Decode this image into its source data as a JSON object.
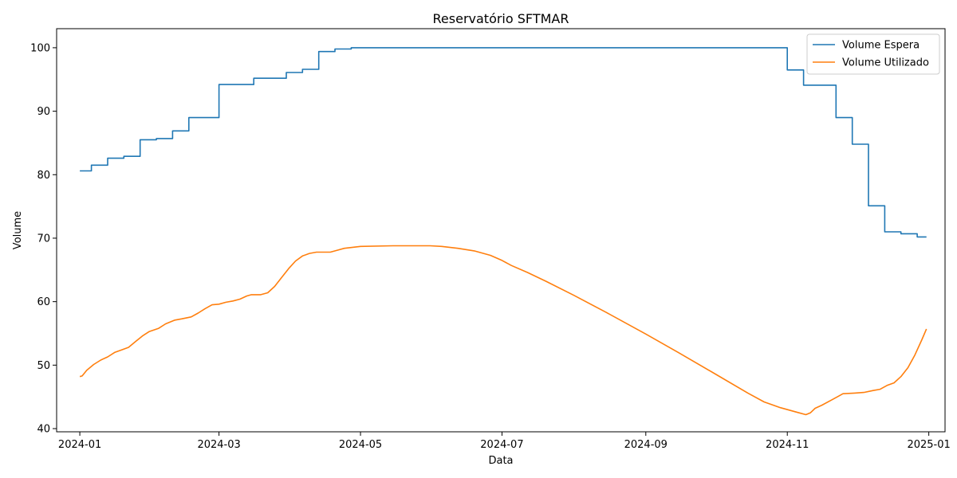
{
  "chart_data": {
    "type": "line",
    "title": "Reservatório SFTMAR",
    "xlabel": "Data",
    "ylabel": "Volume",
    "x_axis": "date",
    "xlim": [
      "2023-12-22",
      "2025-01-08"
    ],
    "ylim": [
      39.5,
      103
    ],
    "x_ticks": [
      "2024-01",
      "2024-03",
      "2024-05",
      "2024-07",
      "2024-09",
      "2024-11",
      "2025-01"
    ],
    "x_tick_dates": [
      "2024-01-01",
      "2024-03-01",
      "2024-05-01",
      "2024-07-01",
      "2024-09-01",
      "2024-11-01",
      "2025-01-01"
    ],
    "y_ticks": [
      40,
      50,
      60,
      70,
      80,
      90,
      100
    ],
    "grid": false,
    "legend_position": "top-right",
    "series": [
      {
        "name": "Volume Espera",
        "color": "#1f77b4",
        "step": true,
        "points": [
          [
            "2024-01-01",
            80.6
          ],
          [
            "2024-01-06",
            81.5
          ],
          [
            "2024-01-13",
            82.6
          ],
          [
            "2024-01-20",
            82.9
          ],
          [
            "2024-01-27",
            85.5
          ],
          [
            "2024-02-03",
            85.7
          ],
          [
            "2024-02-10",
            86.9
          ],
          [
            "2024-02-17",
            89.0
          ],
          [
            "2024-03-01",
            94.2
          ],
          [
            "2024-03-16",
            95.2
          ],
          [
            "2024-03-30",
            96.1
          ],
          [
            "2024-04-06",
            96.6
          ],
          [
            "2024-04-13",
            99.4
          ],
          [
            "2024-04-20",
            99.8
          ],
          [
            "2024-04-27",
            100.0
          ],
          [
            "2024-10-31",
            100.0
          ],
          [
            "2024-11-01",
            96.5
          ],
          [
            "2024-11-08",
            94.1
          ],
          [
            "2024-11-22",
            89.0
          ],
          [
            "2024-11-29",
            84.8
          ],
          [
            "2024-12-06",
            75.1
          ],
          [
            "2024-12-13",
            71.0
          ],
          [
            "2024-12-20",
            70.7
          ],
          [
            "2024-12-27",
            70.2
          ],
          [
            "2024-12-31",
            70.2
          ]
        ]
      },
      {
        "name": "Volume Utilizado",
        "color": "#ff7f0e",
        "step": false,
        "points": [
          [
            "2024-01-01",
            48.2
          ],
          [
            "2024-01-02",
            48.3
          ],
          [
            "2024-01-04",
            49.2
          ],
          [
            "2024-01-07",
            50.1
          ],
          [
            "2024-01-10",
            50.8
          ],
          [
            "2024-01-13",
            51.3
          ],
          [
            "2024-01-16",
            52.0
          ],
          [
            "2024-01-19",
            52.4
          ],
          [
            "2024-01-22",
            52.8
          ],
          [
            "2024-01-25",
            53.7
          ],
          [
            "2024-01-28",
            54.6
          ],
          [
            "2024-01-31",
            55.3
          ],
          [
            "2024-02-04",
            55.8
          ],
          [
            "2024-02-07",
            56.5
          ],
          [
            "2024-02-11",
            57.1
          ],
          [
            "2024-02-14",
            57.3
          ],
          [
            "2024-02-18",
            57.6
          ],
          [
            "2024-02-21",
            58.2
          ],
          [
            "2024-02-24",
            58.9
          ],
          [
            "2024-02-27",
            59.5
          ],
          [
            "2024-03-01",
            59.6
          ],
          [
            "2024-03-04",
            59.9
          ],
          [
            "2024-03-07",
            60.1
          ],
          [
            "2024-03-10",
            60.4
          ],
          [
            "2024-03-13",
            60.9
          ],
          [
            "2024-03-15",
            61.1
          ],
          [
            "2024-03-19",
            61.1
          ],
          [
            "2024-03-22",
            61.4
          ],
          [
            "2024-03-25",
            62.4
          ],
          [
            "2024-03-28",
            63.8
          ],
          [
            "2024-03-31",
            65.2
          ],
          [
            "2024-04-03",
            66.4
          ],
          [
            "2024-04-06",
            67.2
          ],
          [
            "2024-04-09",
            67.6
          ],
          [
            "2024-04-12",
            67.8
          ],
          [
            "2024-04-18",
            67.8
          ],
          [
            "2024-04-21",
            68.1
          ],
          [
            "2024-04-24",
            68.4
          ],
          [
            "2024-05-01",
            68.7
          ],
          [
            "2024-05-15",
            68.8
          ],
          [
            "2024-05-31",
            68.8
          ],
          [
            "2024-06-05",
            68.7
          ],
          [
            "2024-06-12",
            68.4
          ],
          [
            "2024-06-19",
            68.0
          ],
          [
            "2024-06-26",
            67.3
          ],
          [
            "2024-07-01",
            66.5
          ],
          [
            "2024-07-05",
            65.7
          ],
          [
            "2024-07-12",
            64.6
          ],
          [
            "2024-07-20",
            63.2
          ],
          [
            "2024-08-01",
            61.0
          ],
          [
            "2024-08-15",
            58.3
          ],
          [
            "2024-09-01",
            54.9
          ],
          [
            "2024-09-15",
            52.0
          ],
          [
            "2024-10-01",
            48.6
          ],
          [
            "2024-10-15",
            45.6
          ],
          [
            "2024-10-22",
            44.2
          ],
          [
            "2024-10-29",
            43.3
          ],
          [
            "2024-11-05",
            42.6
          ],
          [
            "2024-11-09",
            42.2
          ],
          [
            "2024-11-11",
            42.5
          ],
          [
            "2024-11-13",
            43.2
          ],
          [
            "2024-11-16",
            43.7
          ],
          [
            "2024-11-20",
            44.5
          ],
          [
            "2024-11-23",
            45.1
          ],
          [
            "2024-11-25",
            45.5
          ],
          [
            "2024-11-30",
            45.6
          ],
          [
            "2024-12-04",
            45.7
          ],
          [
            "2024-12-08",
            46.0
          ],
          [
            "2024-12-11",
            46.2
          ],
          [
            "2024-12-14",
            46.8
          ],
          [
            "2024-12-17",
            47.2
          ],
          [
            "2024-12-20",
            48.2
          ],
          [
            "2024-12-23",
            49.6
          ],
          [
            "2024-12-26",
            51.6
          ],
          [
            "2024-12-29",
            54.0
          ],
          [
            "2024-12-31",
            55.7
          ]
        ]
      }
    ]
  }
}
